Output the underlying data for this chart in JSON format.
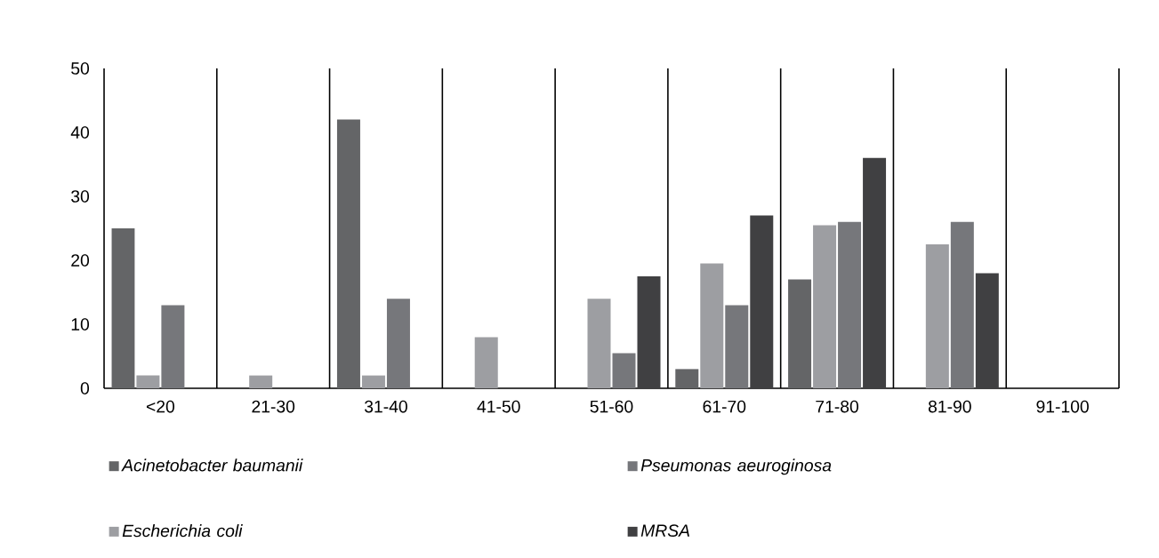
{
  "chart_data": {
    "type": "bar",
    "categories": [
      "<20",
      "21-30",
      "31-40",
      "41-50",
      "51-60",
      "61-70",
      "71-80",
      "81-90",
      "91-100"
    ],
    "series": [
      {
        "name": "Acinetobacter baumanii",
        "color": "#646567",
        "values": [
          25,
          0,
          42,
          0,
          0,
          3,
          17,
          0,
          0
        ]
      },
      {
        "name": "Escherichia coli",
        "color": "#9d9ea2",
        "values": [
          2,
          2,
          2,
          8,
          14,
          19.5,
          25.5,
          22.5,
          0
        ]
      },
      {
        "name": "Pseumonas aeuroginosa",
        "color": "#76777b",
        "values": [
          13,
          0,
          14,
          0,
          5.5,
          13,
          26,
          26,
          0
        ]
      },
      {
        "name": "MRSA",
        "color": "#404042",
        "values": [
          0,
          0,
          0,
          0,
          17.5,
          27,
          36,
          18,
          0
        ]
      }
    ],
    "ylim": [
      0,
      50
    ],
    "yticks": [
      0,
      10,
      20,
      30,
      40,
      50
    ],
    "grid": "x",
    "legend": "bottom"
  }
}
